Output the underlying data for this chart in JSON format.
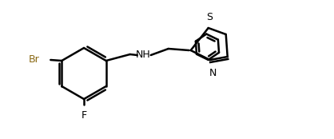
{
  "background_color": "#ffffff",
  "line_color": "#000000",
  "line_width": 1.8,
  "label_Br": "Br",
  "label_F": "F",
  "label_NH": "NH",
  "label_N": "N",
  "label_S": "S",
  "font_size": 9,
  "fig_width": 4.18,
  "fig_height": 1.74,
  "dpi": 100
}
